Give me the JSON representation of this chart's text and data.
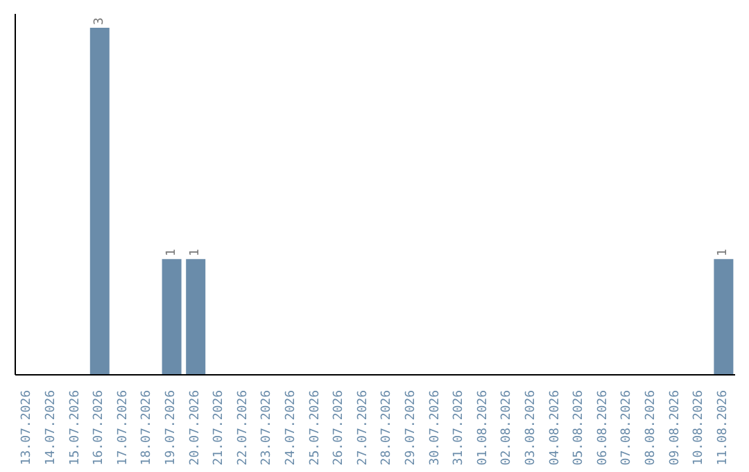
{
  "chart_data": {
    "type": "bar",
    "categories": [
      "13.07.2026",
      "14.07.2026",
      "15.07.2026",
      "16.07.2026",
      "17.07.2026",
      "18.07.2026",
      "19.07.2026",
      "20.07.2026",
      "21.07.2026",
      "22.07.2026",
      "23.07.2026",
      "24.07.2026",
      "25.07.2026",
      "26.07.2026",
      "27.07.2026",
      "28.07.2026",
      "29.07.2026",
      "30.07.2026",
      "31.07.2026",
      "01.08.2026",
      "02.08.2026",
      "03.08.2026",
      "04.08.2026",
      "05.08.2026",
      "06.08.2026",
      "07.08.2026",
      "08.08.2026",
      "09.08.2026",
      "10.08.2026",
      "11.08.2026"
    ],
    "values": [
      0,
      0,
      0,
      3,
      0,
      0,
      1,
      1,
      0,
      0,
      0,
      0,
      0,
      0,
      0,
      0,
      0,
      0,
      0,
      0,
      0,
      0,
      0,
      0,
      0,
      0,
      0,
      0,
      0,
      1
    ],
    "value_labels": [
      null,
      null,
      null,
      "3",
      null,
      null,
      "1",
      "1",
      null,
      null,
      null,
      null,
      null,
      null,
      null,
      null,
      null,
      null,
      null,
      null,
      null,
      null,
      null,
      null,
      null,
      null,
      null,
      null,
      null,
      "1"
    ],
    "color": "#6a8caa",
    "tick_labels": "x"
  }
}
